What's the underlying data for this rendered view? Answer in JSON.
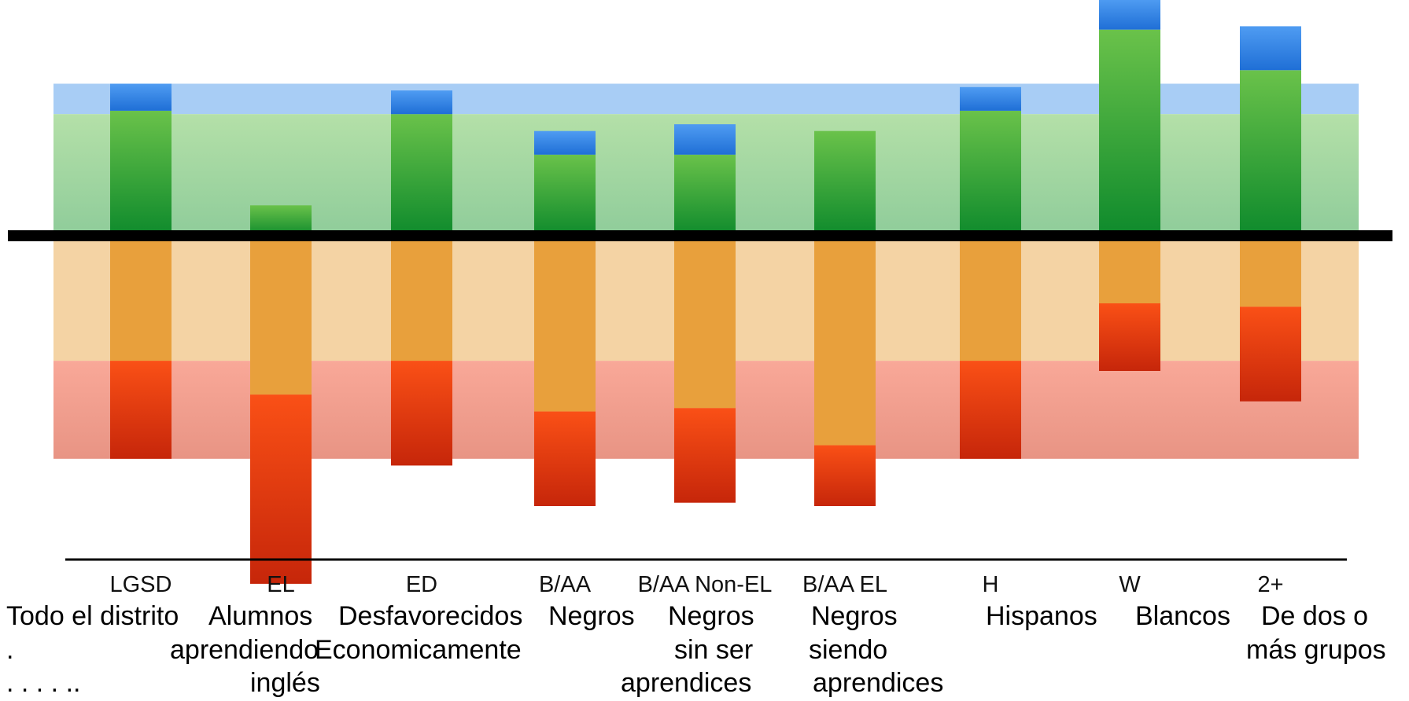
{
  "chart_data": {
    "type": "bar",
    "subtype": "diverging-stacked",
    "title": "",
    "xlabel": "",
    "ylabel": "",
    "ylim": [
      -100,
      70
    ],
    "grid": false,
    "legend": "none",
    "categories": [
      "LGSD",
      "EL",
      "ED",
      "B/AA",
      "B/AA Non-EL",
      "B/AA EL",
      "H",
      "W",
      "2+"
    ],
    "category_descriptions": [
      [
        "Todo el distrito",
        ".",
        ". .   .   . .."
      ],
      [
        "Alumnos",
        "aprendiendo",
        "inglés"
      ],
      [
        "Desfavorecidos",
        "Economicamente",
        ""
      ],
      [
        "Negros",
        "",
        ""
      ],
      [
        "Negros",
        "sin ser",
        "aprendices"
      ],
      [
        "Negros",
        "siendo",
        "aprendices"
      ],
      [
        "Hispanos",
        "",
        ""
      ],
      [
        "Blancos",
        "",
        ""
      ],
      [
        "De dos o",
        "más grupos",
        ""
      ]
    ],
    "series": [
      {
        "color": "#2f7fe0",
        "values": [
          8,
          0,
          7,
          7,
          9,
          0,
          7,
          9,
          13
        ]
      },
      {
        "color": "#2f9e3c",
        "values": [
          37,
          9,
          36,
          24,
          24,
          31,
          37,
          61,
          49
        ]
      },
      {
        "color": "#e8a03c",
        "values": [
          -37,
          -47,
          -37,
          -52,
          -51,
          -62,
          -37,
          -20,
          -21
        ]
      },
      {
        "color": "#e23a10",
        "values": [
          -29,
          -56,
          -31,
          -28,
          -28,
          -18,
          -29,
          -20,
          -28
        ]
      }
    ],
    "bands": [
      {
        "from": 36,
        "to": 45,
        "color": "#a7cbf4"
      },
      {
        "from": 0,
        "to": 36,
        "color": "#a9dca4"
      },
      {
        "from": -37,
        "to": 0,
        "color": "#f4d3a4"
      },
      {
        "from": -66,
        "to": -37,
        "color": "#f4a898"
      }
    ],
    "reference_line": 0
  }
}
